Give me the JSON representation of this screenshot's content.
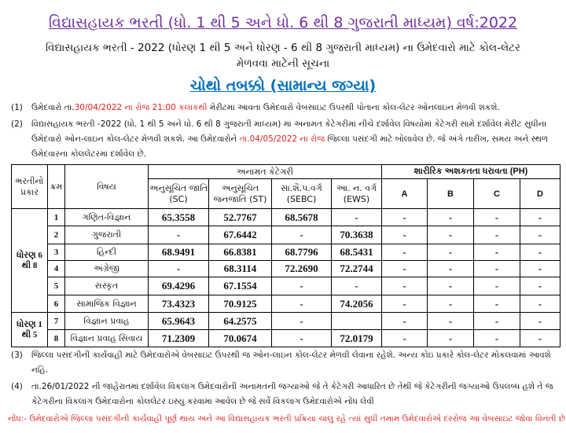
{
  "title": "વિદ્યાસહાયક ભરતી (ધો. 1 થી 5 અને ધો. 6 થી 8 ગુજરાતી માધ્યમ) વર્ષ:2022",
  "subtitle_line1": "વિદ્યાસહાયક ભરતી - 2022 (ધોરણ 1 થી 5 અને ધોરણ - 6 થી 8 ગુજરાતી માધ્યમ) ના ઉમેદવારો માટે કોલ-લેટર",
  "subtitle_line2": "મેળવવા માટેની સૂચના",
  "phase_heading": "ચોથો તબક્કો (સામાન્ય જગ્યા)",
  "notes": [
    {
      "num": "(1)",
      "pre": "ઉમેદવારો તા.",
      "red": "30/04/2022 ના રોજ 21:00 કલાકથી",
      "post": " મેરીટમાં આવતા ઉમેદવારો વેબસાઇટ ઉપરથી પોતાના કોલ-લેટર ઓનલાઇન મેળવી શકશે."
    },
    {
      "num": "(2)",
      "pre": "વિદ્યાસહાયક ભરતી -2022 (ધો. 1 થી 5 અને ધો. 6 થી 8 ગુજરાતી માધ્યમ) માં અનામત કેટેગરીમાં નીચે દર્શાવેલ વિષયોમાં કેટેગરી સામે દર્શાવેલ મેરીટ સુધીના ઉમેદવારો ઓન-લાઇન કોલ-લેટર મેળવી શકશે. આ ઉમેદવારોને ",
      "red": "તા.04/05/2022 ના રોજ",
      "post": " જિલ્લા પસંદગી માટે બોલાવેલ છે. જે અંગે તારીખ, સમય અને સ્થળ ઉમેદવારના કોલલેટરમાં દર્શાવેલ છે."
    },
    {
      "num": "(3)",
      "text": "જિલ્લા પસંદગીની કાર્યવાહી માટે ઉમેદવારોએ વેબસાઇટ ઉપરથી જ ઓન-લાઇન કોલ-લેટર મેળવી લેવાના રહેશે. અન્ય કોઇ પ્રકારે કોલ-લેટર મોકલવામાં આવશે નહિ."
    },
    {
      "num": "(4)",
      "text": "તા.26/01/2022 ની જાહેરાતમાં દર્શાવેલ વિકલાંગ ઉમેદવારોની અનામતની જગ્યાઓ જે તે કેટેગરી આધારિત છે તેથી જે કેટેગરીની  જગ્યાઓ ઉપલબ્ધ હશે તે જ કેટેગરીના વિકલાંગ ઉમેદવારોના કોલલેટર ઇસ્યુ કરવામાં આવેલ છે જે સર્વે વિકલાંગ ઉમેદવારોએ નોંધ લેવી"
    }
  ],
  "footer_note": "નોંધ:- ઉમેદવારોએ જિલ્લા પસંદગીની કાર્યવાહી પૂર્ણ થાય અને આ વિદ્યાસહાયક ભરતી પ્રક્રિયા ચાલુ રહે ત્યાં સુધી તમામ ઉમેદવારોએ દરરોજ આ વેબસાઇટ જોવા વિનંતી છે.",
  "table": {
    "h_type": "ભરતીનો પ્રકાર",
    "h_kram": "ક્રમ",
    "h_subject": "વિષય",
    "h_reserved": "અનામત કેટેગરી",
    "h_sc": "અનુસૂચિત જાતિ (SC)",
    "h_st": "અનુસૂચિત જનજાતિ (ST)",
    "h_sebc": "સા.શૈ.પ.વર્ગ (SEBC)",
    "h_ews": "આ. ન. વર્ગ (EWS)",
    "h_ph": "શારીરિક અશકતતા ધરાવતા (PH)",
    "ph_cols": [
      "A",
      "B",
      "C",
      "D"
    ],
    "group1": "ધોરણ 6 થી 8",
    "group2": "ધોરણ 1 થી 5",
    "rows": [
      {
        "k": "1",
        "subject": "ગણિત-વિજ્ઞાન",
        "sc": "65.3558",
        "st": "52.7767",
        "sebc": "68.5678",
        "ews": "-",
        "a": "-",
        "b": "-",
        "c": "-",
        "d": "-"
      },
      {
        "k": "2",
        "subject": "ગુજરાતી",
        "sc": "-",
        "st": "67.6442",
        "sebc": "-",
        "ews": "70.3638",
        "a": "-",
        "b": "-",
        "c": "-",
        "d": "-"
      },
      {
        "k": "3",
        "subject": "હિન્દી",
        "sc": "68.9491",
        "st": "66.8381",
        "sebc": "68.7796",
        "ews": "68.5431",
        "a": "-",
        "b": "-",
        "c": "-",
        "d": "-"
      },
      {
        "k": "4",
        "subject": "અંગ્રેજી",
        "sc": "-",
        "st": "68.3114",
        "sebc": "72.2690",
        "ews": "72.2744",
        "a": "-",
        "b": "-",
        "c": "-",
        "d": "-"
      },
      {
        "k": "5",
        "subject": "સંસ્કૃત",
        "sc": "69.4296",
        "st": "67.1554",
        "sebc": "-",
        "ews": "-",
        "a": "-",
        "b": "-",
        "c": "-",
        "d": "-"
      },
      {
        "k": "6",
        "subject": "સામાજિક વિજ્ઞાન",
        "sc": "73.4323",
        "st": "70.9125",
        "sebc": "-",
        "ews": "74.2056",
        "a": "-",
        "b": "-",
        "c": "-",
        "d": "-"
      },
      {
        "k": "7",
        "subject": "વિજ્ઞાન પ્રવાહ",
        "sc": "65.9643",
        "st": "64.2575",
        "sebc": "-",
        "ews": "",
        "a": "-",
        "b": "-",
        "c": "-",
        "d": "-"
      },
      {
        "k": "8",
        "subject": "વિજ્ઞાન પ્રવાહ સિવાય",
        "sc": "71.2309",
        "st": "70.0674",
        "sebc": "-",
        "ews": "72.0179",
        "a": "-",
        "b": "-",
        "c": "-",
        "d": "-"
      }
    ]
  }
}
